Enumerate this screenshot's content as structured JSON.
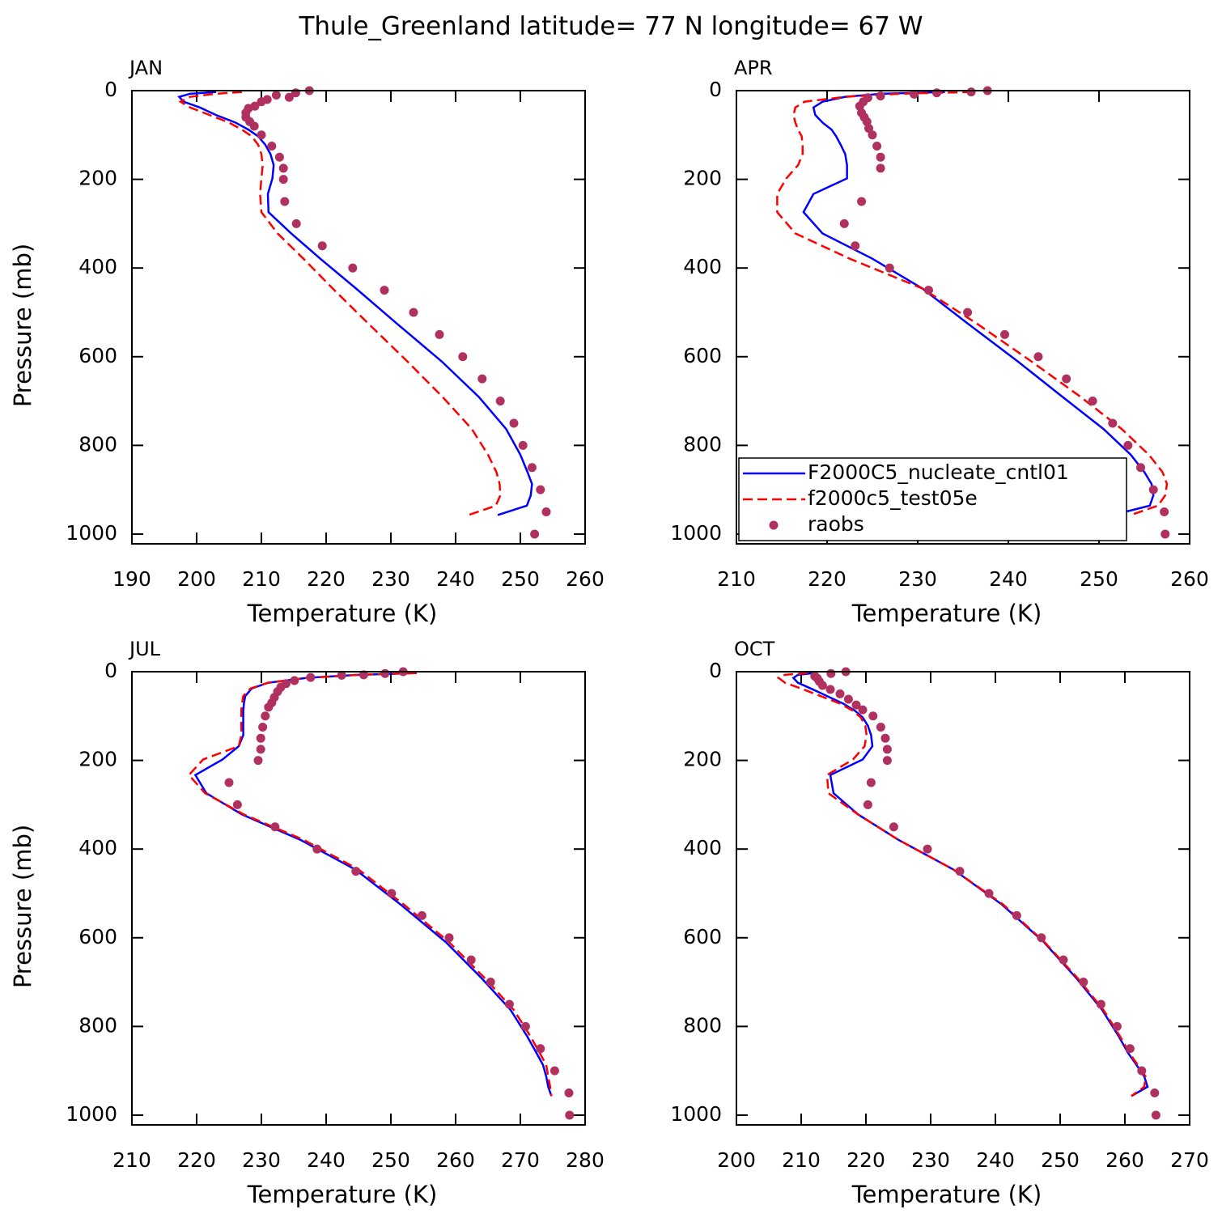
{
  "title": "Thule_Greenland  latitude= 77 N longitude= 67 W",
  "chart_data": [
    {
      "type": "line",
      "title": "JAN",
      "xlabel": "Temperature (K)",
      "ylabel": "Pressure (mb)",
      "xlim": [
        190,
        260
      ],
      "xticks": [
        190,
        200,
        210,
        220,
        230,
        240,
        250,
        260
      ],
      "ylim": [
        1022,
        0
      ],
      "yticks": [
        0,
        200,
        400,
        600,
        800,
        1000
      ],
      "series": [
        {
          "color": "#0000ff",
          "line_style": "solid",
          "y": [
            3,
            7,
            14,
            25,
            38,
            55,
            72,
            88,
            103,
            122,
            143,
            168,
            198,
            233,
            274,
            322,
            379,
            446,
            525,
            610,
            691,
            763,
            821,
            860,
            887,
            913,
            936,
            957
          ],
          "x": [
            203,
            199,
            197.3,
            198,
            200.5,
            203,
            206,
            208,
            209.5,
            210.6,
            211.4,
            211.9,
            211.7,
            211,
            211.1,
            214.6,
            219.1,
            224.6,
            230.9,
            237.8,
            243.6,
            247.8,
            250,
            251.1,
            251.8,
            251.6,
            251,
            246.5
          ]
        },
        {
          "color": "#ff0000",
          "line_style": "dashed",
          "y": [
            3,
            7,
            14,
            25,
            38,
            55,
            72,
            88,
            103,
            122,
            143,
            168,
            198,
            233,
            274,
            322,
            379,
            446,
            525,
            610,
            691,
            763,
            821,
            860,
            887,
            913,
            936,
            957
          ],
          "x": [
            207,
            203,
            199,
            197.5,
            199,
            202,
            205,
            207,
            208.5,
            209.5,
            210,
            210.2,
            210,
            209.8,
            210,
            212.5,
            216.5,
            221,
            226.5,
            232.5,
            238,
            242.5,
            245,
            246.3,
            246.8,
            246.9,
            246.2,
            242
          ]
        },
        {
          "color": "#b03060",
          "line_style": "none",
          "marker": "circle",
          "y": [
            0,
            5,
            10,
            15,
            20,
            25,
            35,
            40,
            50,
            60,
            70,
            80,
            100,
            125,
            150,
            175,
            200,
            250,
            300,
            350,
            400,
            450,
            500,
            550,
            600,
            650,
            700,
            750,
            800,
            850,
            900,
            950,
            1000
          ],
          "x": [
            217.4,
            215.3,
            212.3,
            214.3,
            210.9,
            210,
            209,
            208,
            207.6,
            207.6,
            208.2,
            208.9,
            210,
            211.6,
            212.8,
            213.4,
            213.4,
            213.6,
            215.4,
            219.4,
            224.1,
            229,
            233.5,
            237.5,
            241.1,
            244.1,
            246.9,
            249,
            250.4,
            251.8,
            253.1,
            254,
            252.2
          ]
        }
      ]
    },
    {
      "type": "line",
      "title": "APR",
      "xlabel": "Temperature (K)",
      "xlim": [
        210,
        260
      ],
      "xticks": [
        210,
        220,
        230,
        240,
        250,
        260
      ],
      "ylim": [
        1022,
        0
      ],
      "yticks": [
        0,
        200,
        400,
        600,
        800,
        1000
      ],
      "legend": "lower left",
      "series": [
        {
          "name": "F2000C5_nucleate_cntl01",
          "color": "#0000ff",
          "line_style": "solid",
          "y": [
            3,
            7,
            14,
            25,
            38,
            55,
            72,
            88,
            103,
            122,
            143,
            168,
            198,
            233,
            274,
            322,
            379,
            446,
            525,
            610,
            691,
            763,
            821,
            860,
            887,
            913,
            936,
            957
          ],
          "x": [
            233,
            226,
            222,
            219.5,
            218.5,
            218.7,
            219.5,
            220.5,
            221,
            221.5,
            222,
            222.2,
            222.2,
            218.5,
            217.4,
            219.5,
            225,
            230.5,
            235.5,
            241,
            246,
            250.5,
            253.5,
            255,
            255.8,
            256,
            255.6,
            251.5
          ]
        },
        {
          "name": "f2000c5_test05e",
          "color": "#ff0000",
          "line_style": "dashed",
          "y": [
            3,
            7,
            14,
            25,
            38,
            55,
            72,
            88,
            103,
            122,
            143,
            168,
            198,
            233,
            274,
            322,
            379,
            446,
            525,
            610,
            691,
            763,
            821,
            860,
            887,
            913,
            936,
            957
          ],
          "x": [
            236,
            228,
            222,
            217.5,
            216.5,
            216.3,
            216.5,
            216.8,
            217.2,
            217.3,
            217.3,
            216.8,
            215.5,
            214.5,
            214.5,
            216.5,
            222.5,
            230.5,
            236.5,
            242.5,
            248,
            252.5,
            255.5,
            257,
            257.5,
            257.3,
            256.5,
            253.5
          ]
        },
        {
          "name": "raobs",
          "color": "#b03060",
          "line_style": "none",
          "marker": "circle",
          "y": [
            0,
            3,
            5,
            8,
            12,
            16,
            25,
            35,
            50,
            60,
            70,
            85,
            100,
            125,
            150,
            175,
            250,
            300,
            350,
            400,
            450,
            500,
            550,
            600,
            650,
            700,
            750,
            800,
            850,
            900,
            950,
            1000
          ],
          "x": [
            237.7,
            235.9,
            232.1,
            229.6,
            225.9,
            224.5,
            224,
            223.6,
            223.8,
            224.1,
            224.4,
            224.6,
            225,
            225.5,
            225.9,
            225.9,
            223.8,
            221.9,
            223.1,
            226.9,
            231.2,
            235.5,
            239.6,
            243.3,
            246.4,
            249.3,
            251.5,
            253.2,
            254.6,
            256,
            257.2,
            257.3
          ]
        }
      ]
    },
    {
      "type": "line",
      "title": "JUL",
      "xlabel": "Temperature (K)",
      "ylabel": "Pressure (mb)",
      "xlim": [
        210,
        280
      ],
      "xticks": [
        210,
        220,
        230,
        240,
        250,
        260,
        270,
        280
      ],
      "ylim": [
        1022,
        0
      ],
      "yticks": [
        0,
        200,
        400,
        600,
        800,
        1000
      ],
      "series": [
        {
          "color": "#0000ff",
          "line_style": "solid",
          "y": [
            3,
            7,
            14,
            25,
            38,
            55,
            72,
            88,
            103,
            122,
            143,
            168,
            198,
            233,
            274,
            322,
            379,
            446,
            525,
            610,
            691,
            763,
            821,
            860,
            887,
            913,
            936,
            957
          ],
          "x": [
            254,
            245,
            237,
            231,
            228.5,
            227.5,
            227.3,
            227.2,
            227.2,
            227.2,
            227.2,
            226.5,
            224,
            219.8,
            221.5,
            227,
            236,
            244.5,
            251.5,
            258.5,
            264,
            268.5,
            271,
            272.5,
            273.5,
            274,
            274.3,
            274.8
          ]
        },
        {
          "color": "#ff0000",
          "line_style": "dashed",
          "y": [
            3,
            7,
            14,
            25,
            38,
            55,
            72,
            88,
            103,
            122,
            143,
            168,
            198,
            233,
            274,
            322,
            379,
            446,
            525,
            610,
            691,
            763,
            821,
            860,
            887,
            913,
            936,
            957
          ],
          "x": [
            254,
            245,
            237,
            231,
            228.3,
            227.2,
            227,
            226.9,
            226.9,
            226.9,
            226.9,
            226.5,
            221,
            218.8,
            221.3,
            227.3,
            236.5,
            245,
            252,
            259,
            264.5,
            269,
            271.5,
            273,
            274,
            274.3,
            274.6,
            274.8
          ]
        },
        {
          "color": "#b03060",
          "line_style": "none",
          "marker": "circle",
          "y": [
            0,
            4,
            7,
            8,
            13,
            20,
            27,
            35,
            45,
            58,
            70,
            80,
            100,
            125,
            150,
            175,
            200,
            250,
            300,
            350,
            400,
            450,
            500,
            550,
            600,
            650,
            700,
            750,
            800,
            850,
            900,
            950,
            1000
          ],
          "x": [
            251.9,
            249.1,
            245.8,
            242.4,
            237.6,
            235.1,
            233.8,
            233,
            232.5,
            232,
            231.6,
            231.1,
            230.6,
            230.2,
            229.9,
            229.9,
            229.5,
            225,
            226.3,
            232.1,
            238.6,
            244.6,
            250.1,
            254.8,
            259,
            262.4,
            265.4,
            268.3,
            270.8,
            273.1,
            275.3,
            277.5,
            277.6
          ]
        }
      ]
    },
    {
      "type": "line",
      "title": "OCT",
      "xlabel": "Temperature (K)",
      "xlim": [
        200,
        270
      ],
      "xticks": [
        200,
        210,
        220,
        230,
        240,
        250,
        260,
        270
      ],
      "ylim": [
        1022,
        0
      ],
      "yticks": [
        0,
        200,
        400,
        600,
        800,
        1000
      ],
      "series": [
        {
          "color": "#0000ff",
          "line_style": "solid",
          "y": [
            3,
            7,
            14,
            25,
            38,
            55,
            72,
            88,
            103,
            122,
            143,
            168,
            198,
            233,
            274,
            322,
            379,
            446,
            525,
            610,
            691,
            763,
            821,
            860,
            887,
            913,
            936,
            957
          ],
          "x": [
            212,
            209.5,
            208.8,
            209.5,
            211.5,
            214,
            216.5,
            218.3,
            219.5,
            220.3,
            220.8,
            221,
            219.5,
            214.5,
            215,
            218.8,
            225,
            233.5,
            241,
            247.5,
            252.5,
            256.5,
            259,
            260.5,
            261.8,
            263,
            263.5,
            261
          ]
        },
        {
          "color": "#ff0000",
          "line_style": "dashed",
          "y": [
            3,
            7,
            14,
            25,
            38,
            55,
            72,
            88,
            103,
            122,
            143,
            168,
            198,
            233,
            274,
            322,
            379,
            446,
            525,
            610,
            691,
            763,
            821,
            860,
            887,
            913,
            936,
            957
          ],
          "x": [
            211,
            207.5,
            206.5,
            207.5,
            210,
            213,
            216,
            218,
            219.2,
            219.9,
            220.1,
            219.8,
            218,
            214,
            214.2,
            218.8,
            225,
            233.5,
            241.2,
            247.6,
            252.7,
            256.7,
            259.2,
            260.7,
            262,
            263.2,
            263,
            261
          ]
        },
        {
          "color": "#b03060",
          "line_style": "none",
          "marker": "circle",
          "y": [
            0,
            4,
            10,
            15,
            22,
            31,
            40,
            50,
            62,
            75,
            86,
            100,
            125,
            150,
            175,
            200,
            250,
            300,
            350,
            400,
            450,
            500,
            550,
            600,
            650,
            700,
            750,
            800,
            850,
            900,
            950,
            1000
          ],
          "x": [
            216.9,
            214.6,
            212.1,
            212.5,
            212.8,
            213.3,
            214.5,
            216,
            217.3,
            218.5,
            219.5,
            221.1,
            222.3,
            223,
            223.3,
            223.3,
            220.8,
            220.3,
            224.3,
            229.5,
            234.5,
            239,
            243.3,
            247.1,
            250.5,
            253.6,
            256.3,
            258.8,
            260.8,
            262.6,
            264.6,
            264.8
          ]
        }
      ]
    }
  ]
}
